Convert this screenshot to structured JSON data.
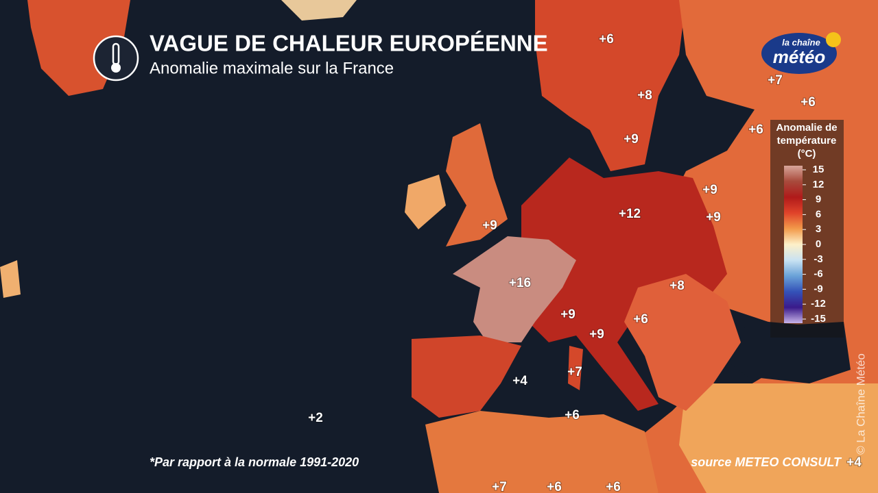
{
  "header": {
    "title": "VAGUE DE CHALEUR EUROPÉENNE",
    "subtitle": "Anomalie maximale sur la France"
  },
  "logo": {
    "line1": "la chaîne",
    "line2": "météo"
  },
  "anomalies": [
    "+6",
    "+7",
    "+6",
    "+8",
    "+6",
    "+9",
    "+9",
    "+12",
    "+9",
    "+9",
    "+16",
    "+8",
    "+9",
    "+6",
    "+9",
    "+7",
    "+4",
    "+2",
    "+6",
    "+7",
    "+6",
    "+6",
    "+4"
  ],
  "legend": {
    "title": [
      "Anomalie de",
      "température",
      "(°C)"
    ],
    "ticks": [
      15,
      12,
      9,
      6,
      3,
      0,
      -3,
      -6,
      -9,
      -12,
      -15
    ]
  },
  "footnote": "*Par rapport à la normale 1991-2020",
  "source": "source METEO CONSULT",
  "copyright": "© La Chaîne Météo"
}
